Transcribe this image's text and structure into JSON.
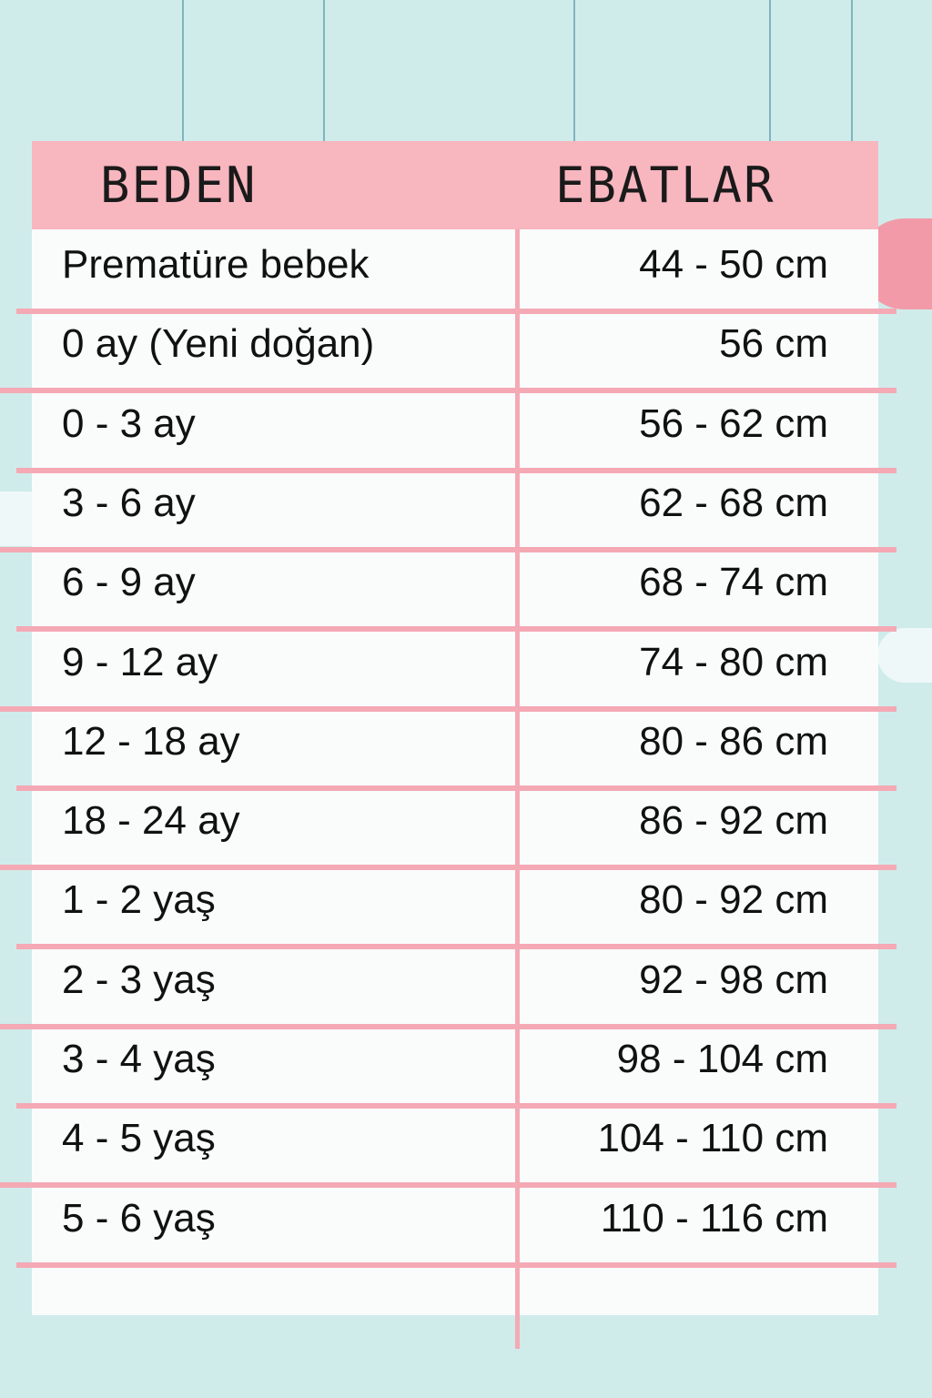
{
  "table": {
    "headers": {
      "size": "BEDEN",
      "measurement": "EBATLAR"
    },
    "rows": [
      {
        "size": "Prematüre bebek",
        "measurement": "44 - 50 cm"
      },
      {
        "size": "0 ay (Yeni doğan)",
        "measurement": "56 cm"
      },
      {
        "size": "0 - 3 ay",
        "measurement": "56 - 62 cm"
      },
      {
        "size": "3 - 6 ay",
        "measurement": "62 - 68 cm"
      },
      {
        "size": "6 - 9 ay",
        "measurement": "68 - 74 cm"
      },
      {
        "size": "9 - 12 ay",
        "measurement": "74 - 80 cm"
      },
      {
        "size": "12 - 18 ay",
        "measurement": "80 - 86 cm"
      },
      {
        "size": "18 - 24 ay",
        "measurement": "86 - 92 cm"
      },
      {
        "size": "1 - 2 yaş",
        "measurement": "80 - 92 cm"
      },
      {
        "size": "2 - 3 yaş",
        "measurement": "92 - 98 cm"
      },
      {
        "size": "3 - 4 yaş",
        "measurement": "98 - 104 cm"
      },
      {
        "size": "4 - 5 yaş",
        "measurement": "104 - 110 cm"
      },
      {
        "size": "5 - 6 yaş",
        "measurement": "110 - 116 cm"
      }
    ]
  },
  "colors": {
    "background": "#cfeceb",
    "header": "#f8b6bf",
    "lines": "#f4a9b4"
  }
}
